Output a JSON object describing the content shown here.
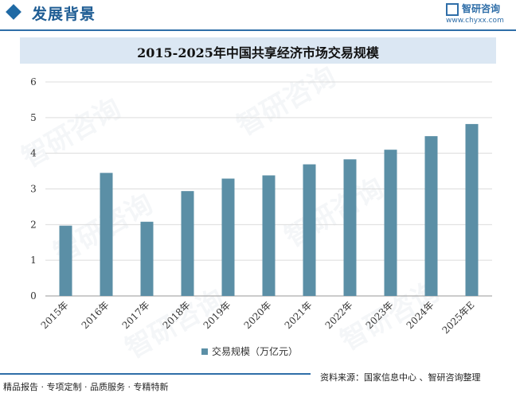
{
  "header": {
    "title": "发展背景",
    "logo_text": "智研咨询",
    "logo_url": "www.chyxx.com"
  },
  "chart_data": {
    "type": "bar",
    "title": "2015-2025年中国共享经济市场交易规模",
    "categories": [
      "2015年",
      "2016年",
      "2017年",
      "2018年",
      "2019年",
      "2020年",
      "2021年",
      "2022年",
      "2023年",
      "2024年",
      "2025年E"
    ],
    "series": [
      {
        "name": "交易规模（万亿元）",
        "values": [
          1.97,
          3.45,
          2.08,
          2.94,
          3.29,
          3.38,
          3.69,
          3.83,
          4.1,
          4.48,
          4.82
        ]
      }
    ],
    "ylim": [
      0,
      6
    ],
    "yticks": [
      0,
      1,
      2,
      3,
      4,
      5,
      6
    ],
    "bar_color": "#5b8fa6",
    "grid": true,
    "legend": "bottom-center"
  },
  "watermark": "智研咨询",
  "footer": {
    "left": "精品报告 · 专项定制 · 品质服务 · 专精特新",
    "right": "资料来源：国家信息中心 、智研咨询整理"
  }
}
